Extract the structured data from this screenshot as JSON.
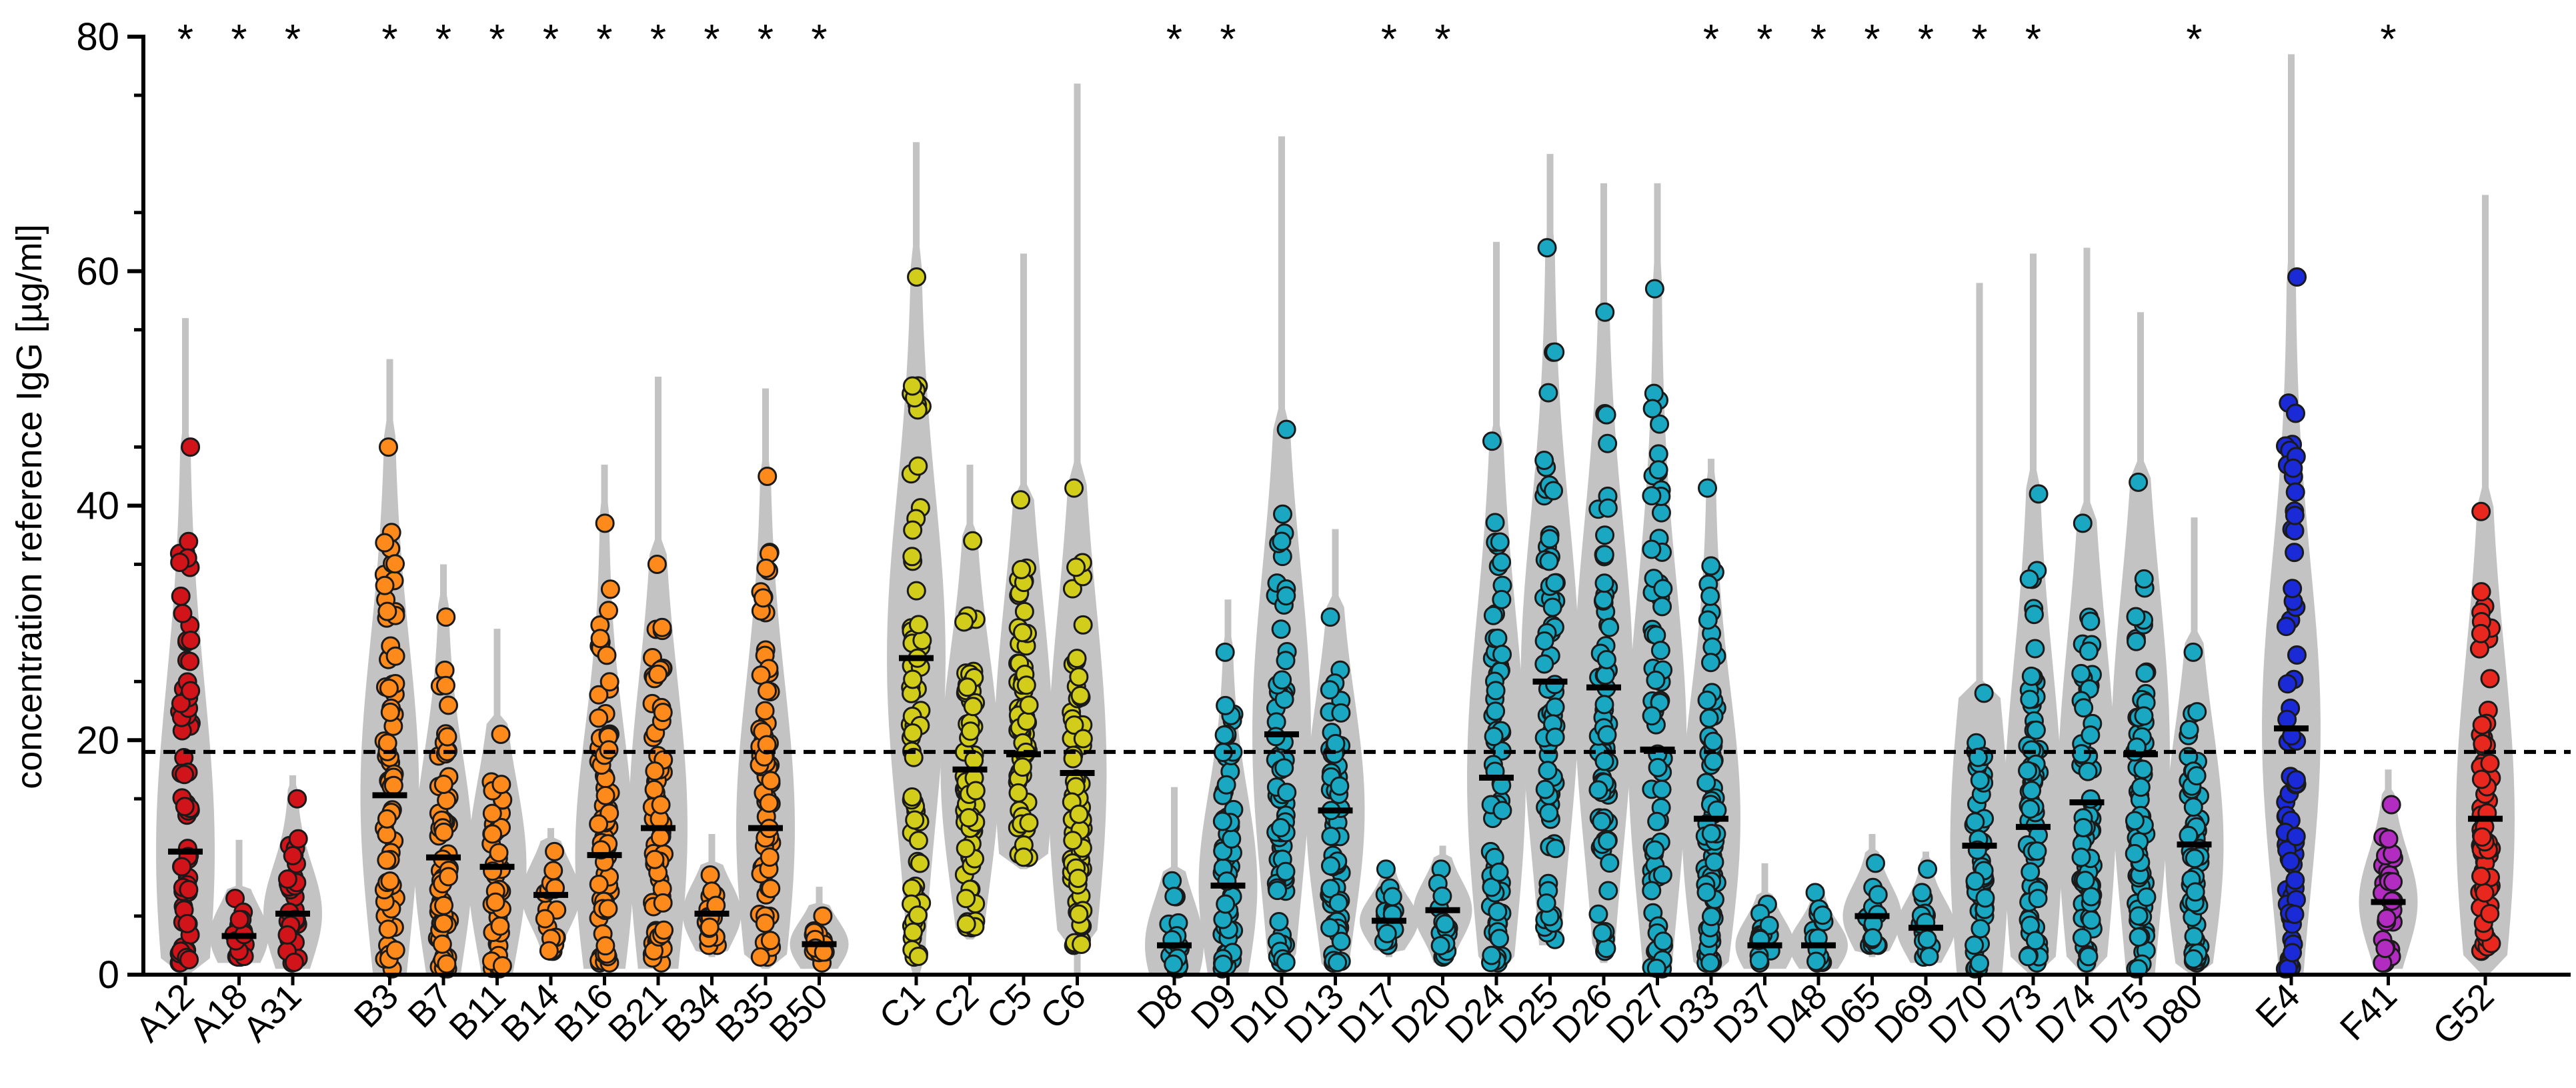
{
  "chart_data": {
    "type": "violin-scatter",
    "ylabel": "concentration reference IgG [µg/ml]",
    "xlabel": "",
    "ylim": [
      0,
      80
    ],
    "y_ticks": [
      0,
      20,
      40,
      60,
      80
    ],
    "reference_line": 19,
    "colors": {
      "A": "#d0141a",
      "B": "#ff8a1c",
      "C": "#d2cd1a",
      "D": "#1aa7c1",
      "E": "#1a2ad6",
      "F": "#b22cc2",
      "G": "#e8281e",
      "violin": "#c3c3c3",
      "median": "#000000"
    },
    "groups": [
      {
        "label": "A12",
        "family": "A",
        "gap_before": 0,
        "median": 10.5,
        "min": 0,
        "max": 56,
        "lo": 1,
        "hi": 45,
        "sig": true
      },
      {
        "label": "A18",
        "family": "A",
        "gap_before": 0,
        "median": 3.3,
        "min": 1,
        "max": 11.5,
        "lo": 1.5,
        "hi": 6.5,
        "sig": true
      },
      {
        "label": "A31",
        "family": "A",
        "gap_before": 0,
        "median": 5.2,
        "min": 0.5,
        "max": 17,
        "lo": 1,
        "hi": 15,
        "sig": true
      },
      {
        "label": "B3",
        "family": "B",
        "gap_before": 1,
        "median": 15.3,
        "min": 0,
        "max": 52.5,
        "lo": 0.5,
        "hi": 45,
        "sig": true
      },
      {
        "label": "B7",
        "family": "B",
        "gap_before": 0,
        "median": 10,
        "min": 0,
        "max": 35,
        "lo": 0.5,
        "hi": 30.5,
        "sig": true
      },
      {
        "label": "B11",
        "family": "B",
        "gap_before": 0,
        "median": 9.2,
        "min": 0,
        "max": 29.5,
        "lo": 0.5,
        "hi": 20.5,
        "sig": true
      },
      {
        "label": "B14",
        "family": "B",
        "gap_before": 0,
        "median": 6.8,
        "min": 1.5,
        "max": 12.5,
        "lo": 2,
        "hi": 10.5,
        "sig": true
      },
      {
        "label": "B16",
        "family": "B",
        "gap_before": 0,
        "median": 10.2,
        "min": 0.5,
        "max": 43.5,
        "lo": 1,
        "hi": 38.5,
        "sig": true
      },
      {
        "label": "B21",
        "family": "B",
        "gap_before": 0,
        "median": 12.5,
        "min": 0.5,
        "max": 51,
        "lo": 1,
        "hi": 35,
        "sig": true
      },
      {
        "label": "B34",
        "family": "B",
        "gap_before": 0,
        "median": 5.2,
        "min": 1.5,
        "max": 12,
        "lo": 2.5,
        "hi": 8.5,
        "sig": true
      },
      {
        "label": "B35",
        "family": "B",
        "gap_before": 0,
        "median": 12.5,
        "min": 0.5,
        "max": 50,
        "lo": 1.5,
        "hi": 42.5,
        "sig": true
      },
      {
        "label": "B50",
        "family": "B",
        "gap_before": 0,
        "median": 2.6,
        "min": 0.5,
        "max": 7.5,
        "lo": 1,
        "hi": 5,
        "sig": true
      },
      {
        "label": "C1",
        "family": "C",
        "gap_before": 1,
        "median": 27,
        "min": 0,
        "max": 71,
        "lo": 1.5,
        "hi": 59.5,
        "sig": false
      },
      {
        "label": "C2",
        "family": "C",
        "gap_before": 0,
        "median": 17.5,
        "min": 3,
        "max": 43.5,
        "lo": 4,
        "hi": 37,
        "sig": false
      },
      {
        "label": "C5",
        "family": "C",
        "gap_before": 0,
        "median": 18.8,
        "min": 9,
        "max": 61.5,
        "lo": 10,
        "hi": 40.5,
        "sig": false
      },
      {
        "label": "C6",
        "family": "C",
        "gap_before": 0,
        "median": 17.2,
        "min": 0,
        "max": 76,
        "lo": 2.5,
        "hi": 41.5,
        "sig": false
      },
      {
        "label": "D8",
        "family": "D",
        "gap_before": 1,
        "median": 2.5,
        "min": 0,
        "max": 16,
        "lo": 0.5,
        "hi": 8,
        "sig": true
      },
      {
        "label": "D9",
        "family": "D",
        "gap_before": 0,
        "median": 7.6,
        "min": 0,
        "max": 32,
        "lo": 0.5,
        "hi": 27.5,
        "sig": true
      },
      {
        "label": "D10",
        "family": "D",
        "gap_before": 0,
        "median": 20.5,
        "min": 0,
        "max": 71.5,
        "lo": 1,
        "hi": 46.5,
        "sig": false
      },
      {
        "label": "D13",
        "family": "D",
        "gap_before": 0,
        "median": 14,
        "min": 0,
        "max": 38,
        "lo": 1,
        "hi": 30.5,
        "sig": false
      },
      {
        "label": "D17",
        "family": "D",
        "gap_before": 0,
        "median": 4.6,
        "min": 1.5,
        "max": 9.5,
        "lo": 2.5,
        "hi": 9,
        "sig": true
      },
      {
        "label": "D20",
        "family": "D",
        "gap_before": 0,
        "median": 5.5,
        "min": 1,
        "max": 11,
        "lo": 1.5,
        "hi": 9,
        "sig": true
      },
      {
        "label": "D24",
        "family": "D",
        "gap_before": 0,
        "median": 16.8,
        "min": 0,
        "max": 62.5,
        "lo": 1,
        "hi": 45.5,
        "sig": false
      },
      {
        "label": "D25",
        "family": "D",
        "gap_before": 0,
        "median": 25,
        "min": 2.5,
        "max": 70,
        "lo": 3,
        "hi": 62,
        "sig": false
      },
      {
        "label": "D26",
        "family": "D",
        "gap_before": 0,
        "median": 24.5,
        "min": 1,
        "max": 67.5,
        "lo": 2,
        "hi": 56.5,
        "sig": false
      },
      {
        "label": "D27",
        "family": "D",
        "gap_before": 0,
        "median": 19.2,
        "min": 0,
        "max": 67.5,
        "lo": 0.5,
        "hi": 58.5,
        "sig": false
      },
      {
        "label": "D33",
        "family": "D",
        "gap_before": 0,
        "median": 13.3,
        "min": 0,
        "max": 44,
        "lo": 1,
        "hi": 41.5,
        "sig": true
      },
      {
        "label": "D37",
        "family": "D",
        "gap_before": 0,
        "median": 2.5,
        "min": 0.5,
        "max": 9.5,
        "lo": 1,
        "hi": 6,
        "sig": true
      },
      {
        "label": "D48",
        "family": "D",
        "gap_before": 0,
        "median": 2.5,
        "min": 0.5,
        "max": 7.5,
        "lo": 1,
        "hi": 7,
        "sig": true
      },
      {
        "label": "D65",
        "family": "D",
        "gap_before": 0,
        "median": 5,
        "min": 1.5,
        "max": 12,
        "lo": 2.5,
        "hi": 9.5,
        "sig": true
      },
      {
        "label": "D69",
        "family": "D",
        "gap_before": 0,
        "median": 4,
        "min": 1,
        "max": 10.5,
        "lo": 1.5,
        "hi": 9,
        "sig": true
      },
      {
        "label": "D70",
        "family": "D",
        "gap_before": 0,
        "median": 11,
        "min": 0,
        "max": 59,
        "lo": 0.5,
        "hi": 24,
        "sig": true
      },
      {
        "label": "D73",
        "family": "D",
        "gap_before": 0,
        "median": 12.6,
        "min": 0,
        "max": 61.5,
        "lo": 1,
        "hi": 41,
        "sig": true
      },
      {
        "label": "D74",
        "family": "D",
        "gap_before": 0,
        "median": 14.7,
        "min": 0,
        "max": 62,
        "lo": 1,
        "hi": 38.5,
        "sig": false
      },
      {
        "label": "D75",
        "family": "D",
        "gap_before": 0,
        "median": 18.8,
        "min": 0,
        "max": 56.5,
        "lo": 0.5,
        "hi": 42,
        "sig": false
      },
      {
        "label": "D80",
        "family": "D",
        "gap_before": 0,
        "median": 11.1,
        "min": 0,
        "max": 39,
        "lo": 1,
        "hi": 27.5,
        "sig": true
      },
      {
        "label": "E4",
        "family": "E",
        "gap_before": 1,
        "median": 21,
        "min": 0,
        "max": 78.5,
        "lo": 0.5,
        "hi": 59.5,
        "sig": false
      },
      {
        "label": "F41",
        "family": "F",
        "gap_before": 1,
        "median": 6.2,
        "min": 0.5,
        "max": 17.5,
        "lo": 1,
        "hi": 14.5,
        "sig": true
      },
      {
        "label": "G52",
        "family": "G",
        "gap_before": 1,
        "median": 13.3,
        "min": 0,
        "max": 66.5,
        "lo": 2,
        "hi": 39.5,
        "sig": false
      }
    ],
    "significance_marker": "*"
  }
}
